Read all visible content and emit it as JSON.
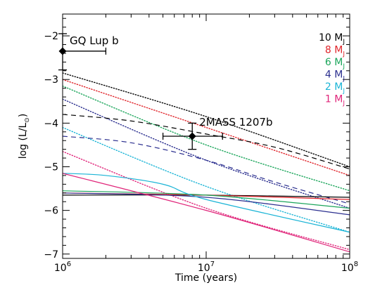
{
  "chart_data": {
    "type": "line",
    "title": "",
    "xlabel": "Time (years)",
    "ylabel": "log (L/L",
    "ylabel_symbol": "⊙",
    "xscale": "log",
    "xlim": [
      1000000,
      100000000
    ],
    "ylim": [
      -7.1,
      -1.5
    ],
    "x_ticks": [
      {
        "value": 1000000,
        "base": "10",
        "exp": "6"
      },
      {
        "value": 10000000,
        "base": "10",
        "exp": "7"
      },
      {
        "value": 100000000,
        "base": "10",
        "exp": "8"
      }
    ],
    "y_ticks": [
      {
        "value": -2,
        "label": "−2"
      },
      {
        "value": -3,
        "label": "−3"
      },
      {
        "value": -4,
        "label": "−4"
      },
      {
        "value": -5,
        "label": "−5"
      },
      {
        "value": -6,
        "label": "−6"
      },
      {
        "value": -7,
        "label": "−7"
      }
    ],
    "grid": false,
    "legend_position": "top-right",
    "legend": [
      {
        "text": "10 M",
        "sub": "J",
        "color": "#000000"
      },
      {
        "text": "8 M",
        "sub": "J",
        "color": "#e0242a"
      },
      {
        "text": "6 M",
        "sub": "J",
        "color": "#1aa55a"
      },
      {
        "text": "4 M",
        "sub": "J",
        "color": "#2b2f8f"
      },
      {
        "text": "2 M",
        "sub": "J",
        "color": "#1ab4d6"
      },
      {
        "text": "1 M",
        "sub": "J",
        "color": "#e0257a"
      }
    ],
    "series": [
      {
        "mass": 10,
        "style": "dotted",
        "color": "#000000",
        "x": [
          1000000,
          10000000,
          100000000
        ],
        "y": [
          -2.85,
          -3.85,
          -5.0
        ]
      },
      {
        "mass": 8,
        "style": "dotted",
        "color": "#e0242a",
        "x": [
          1000000,
          10000000,
          100000000
        ],
        "y": [
          -3.0,
          -4.1,
          -5.2
        ]
      },
      {
        "mass": 6,
        "style": "dotted",
        "color": "#1aa55a",
        "x": [
          1000000,
          10000000,
          100000000
        ],
        "y": [
          -3.15,
          -4.5,
          -5.55
        ]
      },
      {
        "mass": 4,
        "style": "dotted",
        "color": "#2b2f8f",
        "x": [
          1000000,
          10000000,
          100000000
        ],
        "y": [
          -3.45,
          -4.85,
          -5.95
        ]
      },
      {
        "mass": 2,
        "style": "dotted",
        "color": "#1ab4d6",
        "x": [
          1000000,
          10000000,
          100000000
        ],
        "y": [
          -4.1,
          -5.45,
          -6.5
        ]
      },
      {
        "mass": 1,
        "style": "dotted",
        "color": "#e0257a",
        "x": [
          1000000,
          10000000,
          100000000
        ],
        "y": [
          -4.65,
          -5.95,
          -6.9
        ]
      },
      {
        "mass": 10,
        "style": "dashed",
        "color": "#000000",
        "x": [
          1000000,
          3000000,
          10000000,
          30000000,
          100000000
        ],
        "y": [
          -3.8,
          -3.95,
          -4.25,
          -4.55,
          -5.05
        ]
      },
      {
        "mass": 4,
        "style": "dashed",
        "color": "#2b2f8f",
        "x": [
          1000000,
          3000000,
          10000000,
          30000000,
          100000000
        ],
        "y": [
          -4.3,
          -4.45,
          -4.85,
          -5.35,
          -5.85
        ]
      },
      {
        "mass": 10,
        "style": "solid",
        "color": "#000000",
        "x": [
          1000000,
          10000000,
          100000000
        ],
        "y": [
          -5.65,
          -5.65,
          -5.7
        ]
      },
      {
        "mass": 8,
        "style": "solid",
        "color": "#e0242a",
        "x": [
          1000000,
          10000000,
          100000000
        ],
        "y": [
          -5.6,
          -5.65,
          -5.75
        ]
      },
      {
        "mass": 6,
        "style": "solid",
        "color": "#1aa55a",
        "x": [
          1000000,
          10000000,
          100000000
        ],
        "y": [
          -5.55,
          -5.65,
          -5.95
        ]
      },
      {
        "mass": 4,
        "style": "solid",
        "color": "#2b2f8f",
        "x": [
          1000000,
          10000000,
          100000000
        ],
        "y": [
          -5.6,
          -5.7,
          -6.1
        ]
      },
      {
        "mass": 2,
        "style": "solid",
        "color": "#1ab4d6",
        "x": [
          1000000,
          2000000,
          5000000,
          10000000,
          100000000
        ],
        "y": [
          -5.15,
          -5.2,
          -5.4,
          -5.75,
          -6.5
        ]
      },
      {
        "mass": 1,
        "style": "solid",
        "color": "#e0257a",
        "x": [
          1000000,
          10000000,
          100000000
        ],
        "y": [
          -5.15,
          -6.0,
          -6.95
        ]
      }
    ],
    "points": [
      {
        "label": "GQ Lup b",
        "x": 1000000,
        "y": -2.35,
        "yerr_low": -2.78,
        "yerr_high": -1.95,
        "xerr_low": 1000000,
        "xerr_high": 2000000
      },
      {
        "label": "2MASS 1207b",
        "x": 8000000,
        "y": -4.3,
        "yerr_low": -4.6,
        "yerr_high": -4.0,
        "xerr_low": 5000000,
        "xerr_high": 13000000
      }
    ]
  }
}
